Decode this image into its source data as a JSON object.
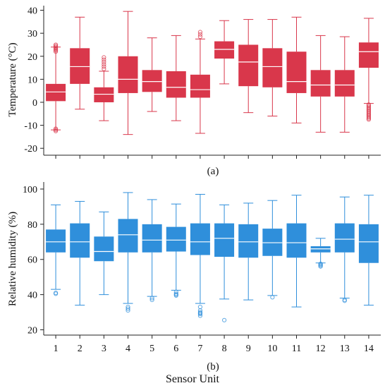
{
  "figure": {
    "shared_xlabel": "Sensor Unit"
  },
  "colors": {
    "temperature": "#d9374b",
    "humidity": "#2f8fdb",
    "axis": "#222222"
  },
  "chart_data": [
    {
      "type": "box",
      "panel_label": "(a)",
      "ylabel": "Temperature (°C)",
      "xlabel": "",
      "ylim": [
        -23,
        42
      ],
      "yticks": [
        -20,
        -10,
        0,
        10,
        20,
        30,
        40
      ],
      "categories": [
        "1",
        "2",
        "3",
        "4",
        "5",
        "6",
        "7",
        "8",
        "9",
        "10",
        "11",
        "12",
        "13",
        "14"
      ],
      "show_xtick_labels": false,
      "boxes": [
        {
          "min": -12,
          "q1": 0.5,
          "median": 4.5,
          "q3": 8,
          "max": 24,
          "outliers": [
            25,
            24.5,
            24,
            23.5,
            23,
            22.5,
            22,
            -12,
            -12.5,
            -11.5
          ]
        },
        {
          "min": -3,
          "q1": 8,
          "median": 15.5,
          "q3": 23.5,
          "max": 37,
          "outliers": []
        },
        {
          "min": -8,
          "q1": 0,
          "median": 3.5,
          "q3": 6.5,
          "max": 13.5,
          "outliers": [
            14.5,
            15.5,
            16.5,
            17.5,
            18.5,
            19.5
          ]
        },
        {
          "min": -14,
          "q1": 4,
          "median": 10,
          "q3": 20,
          "max": 39.5,
          "outliers": []
        },
        {
          "min": -4,
          "q1": 4.5,
          "median": 9,
          "q3": 14,
          "max": 28,
          "outliers": []
        },
        {
          "min": -8,
          "q1": 2,
          "median": 6.5,
          "q3": 13.5,
          "max": 29,
          "outliers": []
        },
        {
          "min": -13.5,
          "q1": 2,
          "median": 5.5,
          "q3": 12,
          "max": 27.5,
          "outliers": [
            28.5,
            29.5,
            30.5
          ]
        },
        {
          "min": 8,
          "q1": 19,
          "median": 23,
          "q3": 26.5,
          "max": 35.5,
          "outliers": []
        },
        {
          "min": -4.5,
          "q1": 7,
          "median": 17.5,
          "q3": 25,
          "max": 36,
          "outliers": []
        },
        {
          "min": -6,
          "q1": 6.5,
          "median": 15.5,
          "q3": 23.5,
          "max": 36,
          "outliers": []
        },
        {
          "min": -9,
          "q1": 4,
          "median": 9,
          "q3": 22,
          "max": 37,
          "outliers": []
        },
        {
          "min": -13,
          "q1": 2.5,
          "median": 7.5,
          "q3": 14,
          "max": 29,
          "outliers": []
        },
        {
          "min": -13,
          "q1": 2.5,
          "median": 7.5,
          "q3": 14,
          "max": 28.5,
          "outliers": []
        },
        {
          "min": -0.5,
          "q1": 15,
          "median": 22,
          "q3": 26,
          "max": 36.5,
          "outliers": [
            -1,
            -1.5,
            -2,
            -2.5,
            -3,
            -3.5,
            -4,
            -4.5,
            -5,
            -5.5,
            -6,
            -6.5,
            -7,
            -7.5
          ]
        }
      ]
    },
    {
      "type": "box",
      "panel_label": "(b)",
      "ylabel": "Relative humidity (%)",
      "xlabel": "Sensor Unit",
      "ylim": [
        17,
        104
      ],
      "yticks": [
        20,
        40,
        60,
        80,
        100
      ],
      "categories": [
        "1",
        "2",
        "3",
        "4",
        "5",
        "6",
        "7",
        "8",
        "9",
        "10",
        "11",
        "12",
        "13",
        "14"
      ],
      "show_xtick_labels": true,
      "boxes": [
        {
          "min": 43,
          "q1": 64,
          "median": 70,
          "q3": 77,
          "max": 91,
          "outliers": [
            41,
            40.5
          ]
        },
        {
          "min": 34,
          "q1": 61,
          "median": 70,
          "q3": 80.5,
          "max": 93,
          "outliers": []
        },
        {
          "min": 40,
          "q1": 59,
          "median": 64.5,
          "q3": 73,
          "max": 87,
          "outliers": []
        },
        {
          "min": 35,
          "q1": 64,
          "median": 74,
          "q3": 83,
          "max": 98,
          "outliers": [
            33,
            32,
            31
          ]
        },
        {
          "min": 39,
          "q1": 64,
          "median": 71,
          "q3": 80,
          "max": 94,
          "outliers": [
            38,
            37
          ]
        },
        {
          "min": 42.5,
          "q1": 64.5,
          "median": 71,
          "q3": 78.5,
          "max": 91.5,
          "outliers": [
            41.5,
            40.5,
            40,
            39.5
          ]
        },
        {
          "min": 35,
          "q1": 62.5,
          "median": 70,
          "q3": 80.5,
          "max": 97,
          "outliers": [
            33,
            31,
            30,
            29.5,
            29,
            28
          ]
        },
        {
          "min": 37.5,
          "q1": 61.5,
          "median": 72,
          "q3": 80.5,
          "max": 91,
          "outliers": [
            25.5
          ]
        },
        {
          "min": 37,
          "q1": 61,
          "median": 70,
          "q3": 80,
          "max": 92,
          "outliers": []
        },
        {
          "min": 39.5,
          "q1": 62,
          "median": 69.5,
          "q3": 77.5,
          "max": 93.5,
          "outliers": [
            38.5
          ]
        },
        {
          "min": 33,
          "q1": 61,
          "median": 69.5,
          "q3": 80.5,
          "max": 96.5,
          "outliers": []
        },
        {
          "min": 58,
          "q1": 64,
          "median": 66,
          "q3": 67.5,
          "max": 72,
          "outliers": [
            57.5,
            57,
            56.5,
            56
          ]
        },
        {
          "min": 38,
          "q1": 64,
          "median": 71.5,
          "q3": 80.5,
          "max": 95.5,
          "outliers": [
            37,
            36.5
          ]
        },
        {
          "min": 34,
          "q1": 58,
          "median": 70,
          "q3": 80,
          "max": 96.5,
          "outliers": []
        }
      ]
    }
  ]
}
